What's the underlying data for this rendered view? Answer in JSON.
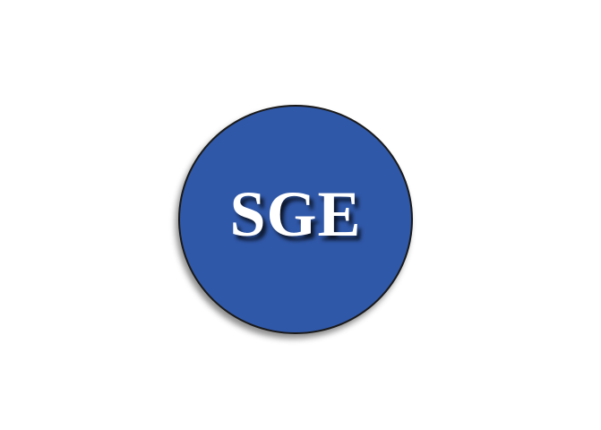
{
  "logo": {
    "text": "SGE",
    "fill_color": "#3058a8",
    "text_color": "#ffffff",
    "outline_color": "#1a1a1a",
    "background_color": "#ffffff"
  }
}
